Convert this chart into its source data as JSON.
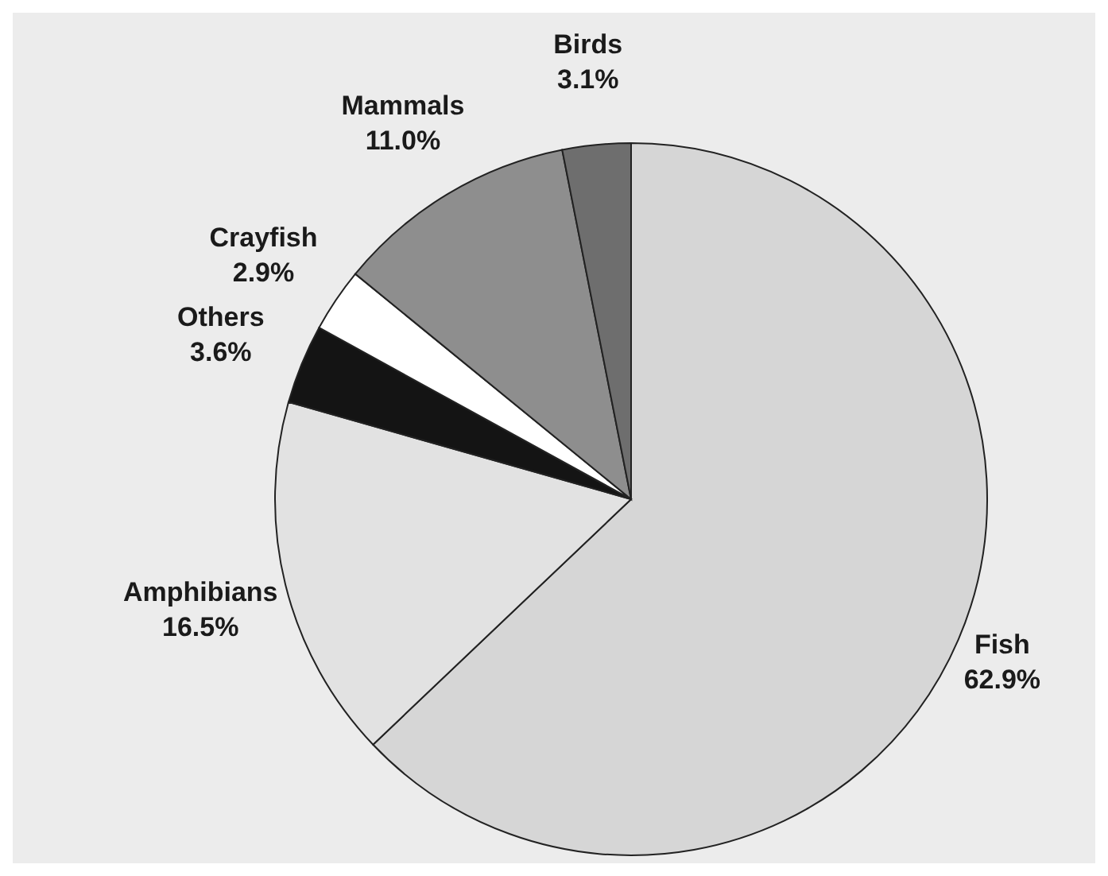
{
  "chart_data": {
    "type": "pie",
    "categories": [
      "Fish",
      "Amphibians",
      "Others",
      "Crayfish",
      "Mammals",
      "Birds"
    ],
    "values": [
      62.9,
      16.5,
      3.6,
      2.9,
      11.0,
      3.1
    ],
    "value_labels": [
      "62.9%",
      "16.5%",
      "3.6%",
      "2.9%",
      "11.0%",
      "3.1%"
    ],
    "colors": [
      "#d6d6d6",
      "#e2e2e2",
      "#141414",
      "#ffffff",
      "#8e8e8e",
      "#6e6e6e"
    ]
  }
}
